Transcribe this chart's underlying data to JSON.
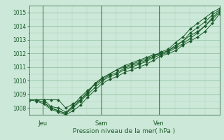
{
  "title": "Pression niveau de la mer( hPa )",
  "bg_color": "#cce8d8",
  "grid_major_color": "#88bb99",
  "grid_minor_color": "#aad4bb",
  "line_color": "#1a5c2a",
  "marker_color": "#1a5c2a",
  "ylim": [
    1007.5,
    1015.5
  ],
  "yticks": [
    1008,
    1009,
    1010,
    1011,
    1012,
    1013,
    1014,
    1015
  ],
  "x_day_labels": [
    [
      "Jeu",
      0.07
    ],
    [
      "Sam",
      0.38
    ],
    [
      "Ven",
      0.68
    ]
  ],
  "x_vlines": [
    0.07,
    0.38,
    0.68
  ],
  "series": [
    [
      1008.6,
      1008.6,
      1008.6,
      1008.6,
      1008.6,
      1008.0,
      1008.3,
      1008.6,
      1009.2,
      1009.8,
      1010.2,
      1010.5,
      1010.8,
      1011.0,
      1011.2,
      1011.4,
      1011.6,
      1011.8,
      1012.1,
      1012.3,
      1012.8,
      1013.2,
      1013.8,
      1014.2,
      1014.6,
      1015.0,
      1015.3
    ],
    [
      1008.6,
      1008.6,
      1008.6,
      1008.1,
      1008.0,
      1007.7,
      1008.1,
      1008.6,
      1009.1,
      1009.8,
      1010.2,
      1010.5,
      1010.8,
      1011.1,
      1011.3,
      1011.5,
      1011.7,
      1011.9,
      1012.0,
      1012.2,
      1012.6,
      1012.9,
      1013.5,
      1013.9,
      1014.3,
      1014.8,
      1015.2
    ],
    [
      1008.6,
      1008.6,
      1008.4,
      1008.0,
      1007.8,
      1007.6,
      1008.2,
      1008.8,
      1009.3,
      1009.7,
      1010.1,
      1010.4,
      1010.6,
      1010.9,
      1011.1,
      1011.3,
      1011.5,
      1011.8,
      1012.0,
      1012.2,
      1012.5,
      1012.9,
      1013.3,
      1013.6,
      1014.0,
      1014.5,
      1015.0
    ],
    [
      1008.6,
      1008.6,
      1008.4,
      1008.0,
      1007.8,
      1007.6,
      1008.0,
      1008.5,
      1009.0,
      1009.5,
      1010.0,
      1010.3,
      1010.5,
      1010.8,
      1011.0,
      1011.2,
      1011.4,
      1011.7,
      1011.9,
      1012.1,
      1012.4,
      1012.7,
      1013.1,
      1013.5,
      1014.0,
      1014.6,
      1015.1
    ],
    [
      1008.6,
      1008.5,
      1008.3,
      1007.9,
      1007.7,
      1007.5,
      1007.8,
      1008.2,
      1008.8,
      1009.3,
      1009.8,
      1010.1,
      1010.3,
      1010.6,
      1010.8,
      1011.0,
      1011.2,
      1011.5,
      1011.8,
      1012.0,
      1012.2,
      1012.6,
      1012.9,
      1013.2,
      1013.6,
      1014.2,
      1014.9
    ]
  ]
}
